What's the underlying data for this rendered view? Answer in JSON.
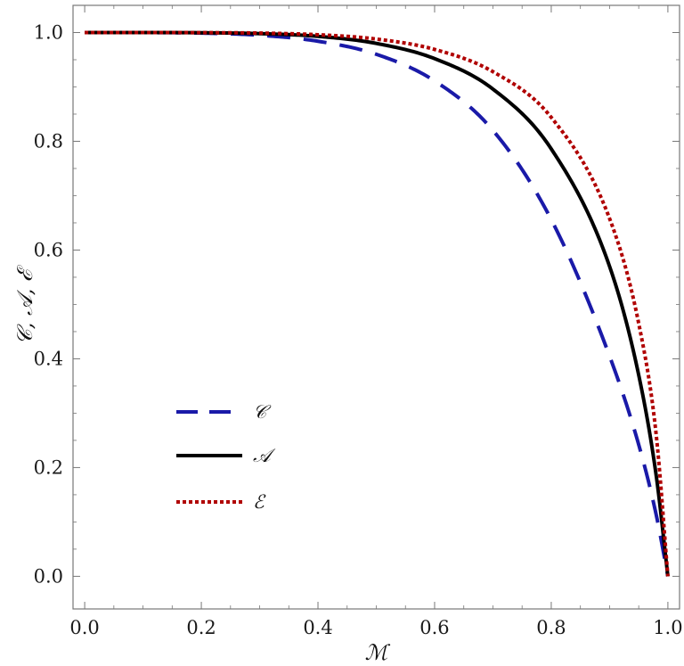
{
  "chart_data": {
    "type": "line",
    "title": "",
    "xlabel": "ℳ",
    "ylabel": "𝒞, 𝒜, ℰ",
    "xlim": [
      -0.02,
      1.02
    ],
    "ylim": [
      -0.06,
      1.05
    ],
    "x_ticks": [
      0.0,
      0.2,
      0.4,
      0.6,
      0.8,
      1.0
    ],
    "x_tick_labels": [
      "0.0",
      "0.2",
      "0.4",
      "0.6",
      "0.8",
      "1.0"
    ],
    "y_ticks": [
      0.0,
      0.2,
      0.4,
      0.6,
      0.8,
      1.0
    ],
    "y_tick_labels": [
      "0.0",
      "0.2",
      "0.4",
      "0.6",
      "0.8",
      "1.0"
    ],
    "grid": false,
    "legend_position": "lower-left",
    "series": [
      {
        "name": "𝒞",
        "color": "#1a1aa8",
        "style": "dashed",
        "x": [
          0.0,
          0.1,
          0.2,
          0.3,
          0.4,
          0.5,
          0.6,
          0.7,
          0.8,
          0.9,
          0.95,
          0.98,
          1.0
        ],
        "y": [
          1.0,
          0.9999,
          0.999,
          0.995,
          0.984,
          0.96,
          0.911,
          0.82,
          0.656,
          0.405,
          0.242,
          0.113,
          0.0
        ]
      },
      {
        "name": "𝒜",
        "color": "#000000",
        "style": "solid",
        "x": [
          0.0,
          0.1,
          0.2,
          0.3,
          0.4,
          0.5,
          0.6,
          0.7,
          0.8,
          0.9,
          0.95,
          0.98,
          1.0
        ],
        "y": [
          1.0,
          1.0,
          0.9996,
          0.998,
          0.993,
          0.98,
          0.952,
          0.896,
          0.786,
          0.57,
          0.37,
          0.185,
          0.0
        ]
      },
      {
        "name": "ℰ",
        "color": "#b00000",
        "style": "dotted",
        "x": [
          0.0,
          0.1,
          0.2,
          0.3,
          0.4,
          0.5,
          0.6,
          0.7,
          0.8,
          0.9,
          0.95,
          0.98,
          1.0
        ],
        "y": [
          1.0,
          1.0,
          0.9998,
          0.999,
          0.996,
          0.988,
          0.969,
          0.928,
          0.844,
          0.658,
          0.465,
          0.26,
          0.0
        ]
      }
    ]
  }
}
